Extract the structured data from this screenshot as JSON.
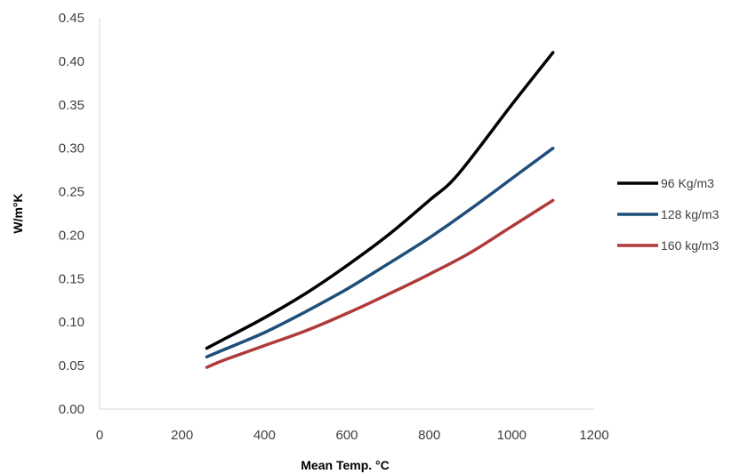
{
  "chart_data": {
    "type": "line",
    "xlabel": "Mean Temp. °C",
    "ylabel": "W/m°K",
    "xlim": [
      0,
      1200
    ],
    "ylim": [
      0,
      0.45
    ],
    "x_ticks": [
      "0",
      "200",
      "400",
      "600",
      "800",
      "1000",
      "1200"
    ],
    "y_ticks": [
      "0.00",
      "0.05",
      "0.10",
      "0.15",
      "0.20",
      "0.25",
      "0.30",
      "0.35",
      "0.40",
      "0.45"
    ],
    "grid": false,
    "legend_position": "right",
    "series": [
      {
        "name": "96 Kg/m3",
        "color": "#000000",
        "x": [
          260,
          300,
          400,
          500,
          600,
          700,
          800,
          870,
          1000,
          1100
        ],
        "y": [
          0.07,
          0.08,
          0.105,
          0.133,
          0.165,
          0.2,
          0.24,
          0.27,
          0.35,
          0.41
        ]
      },
      {
        "name": "128 kg/m3",
        "color": "#1f4e79",
        "x": [
          260,
          300,
          400,
          500,
          600,
          700,
          800,
          900,
          1000,
          1100
        ],
        "y": [
          0.06,
          0.068,
          0.088,
          0.112,
          0.138,
          0.167,
          0.197,
          0.23,
          0.265,
          0.3
        ]
      },
      {
        "name": "160 kg/m3",
        "color": "#b03a3a",
        "x": [
          260,
          300,
          400,
          500,
          600,
          700,
          800,
          900,
          1000,
          1100
        ],
        "y": [
          0.048,
          0.056,
          0.073,
          0.09,
          0.11,
          0.132,
          0.155,
          0.18,
          0.21,
          0.24
        ]
      }
    ]
  }
}
